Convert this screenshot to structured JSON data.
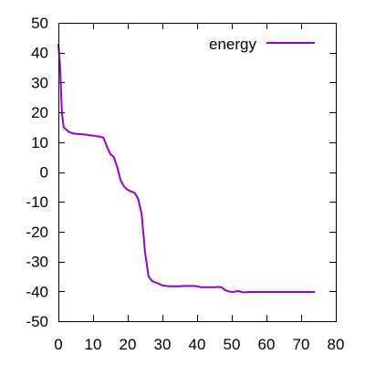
{
  "chart_data": {
    "type": "line",
    "title": "",
    "xlabel": "",
    "ylabel": "",
    "xlim": [
      0,
      80
    ],
    "ylim": [
      -50,
      50
    ],
    "xticks": [
      "0",
      "10",
      "20",
      "30",
      "40",
      "50",
      "60",
      "70",
      "80"
    ],
    "yticks": [
      "50",
      "40",
      "30",
      "20",
      "10",
      "0",
      "-10",
      "-20",
      "-30",
      "-40",
      "-50"
    ],
    "grid": false,
    "legend_position": "top-right",
    "series": [
      {
        "name": "energy",
        "color": "#9400d3",
        "x": [
          0,
          0.5,
          1,
          1.5,
          2,
          3,
          4,
          5,
          6,
          7,
          8,
          9,
          10,
          11,
          12,
          13,
          14,
          15,
          16,
          17,
          18,
          19,
          20,
          21,
          22,
          23,
          24,
          25,
          26,
          27,
          28,
          29,
          30,
          31,
          32,
          33,
          34,
          35,
          36,
          37,
          38,
          39,
          40,
          41,
          42,
          43,
          44,
          45,
          46,
          47,
          48,
          49,
          50,
          51,
          52,
          53,
          54,
          55,
          56,
          57,
          58,
          59,
          60,
          62,
          64,
          66,
          68,
          70,
          72,
          74
        ],
        "y": [
          43,
          35,
          20,
          15,
          14.5,
          13.5,
          13,
          12.8,
          12.7,
          12.6,
          12.5,
          12.3,
          12.2,
          12,
          11.8,
          11.5,
          8.5,
          6,
          5,
          1.5,
          -3,
          -5,
          -6,
          -6.5,
          -7,
          -9,
          -14,
          -27,
          -35,
          -36.5,
          -37,
          -37.5,
          -38,
          -38.2,
          -38.3,
          -38.3,
          -38.3,
          -38.3,
          -38.2,
          -38.2,
          -38.2,
          -38.2,
          -38.3,
          -38.6,
          -38.6,
          -38.6,
          -38.6,
          -38.6,
          -38.5,
          -38.6,
          -39.5,
          -40,
          -40.2,
          -40.1,
          -39.9,
          -40.3,
          -40.3,
          -40.2,
          -40.2,
          -40.2,
          -40.2,
          -40.2,
          -40.2,
          -40.2,
          -40.2,
          -40.2,
          -40.2,
          -40.2,
          -40.2,
          -40.2
        ]
      }
    ]
  }
}
